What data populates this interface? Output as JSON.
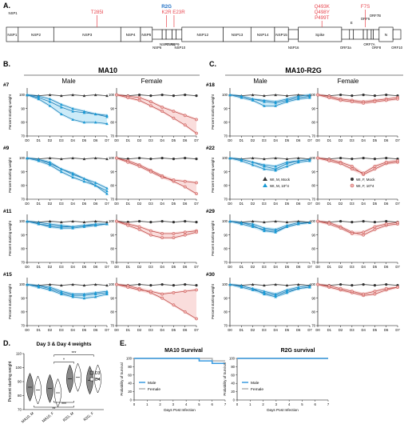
{
  "panel_labels": {
    "a": "A.",
    "b": "B.",
    "c": "C.",
    "d": "D.",
    "e": "E."
  },
  "genome": {
    "genes": [
      {
        "name": "NSP1",
        "start": 0,
        "end": 3
      },
      {
        "name": "NSP2",
        "start": 3,
        "end": 12
      },
      {
        "name": "NSP3",
        "start": 12,
        "end": 29
      },
      {
        "name": "NSP4",
        "start": 29,
        "end": 34
      },
      {
        "name": "NSP5",
        "start": 34,
        "end": 37
      },
      {
        "name": "NSP6",
        "start": 37,
        "end": 39.5
      },
      {
        "name": "NSP7",
        "start": 39.5,
        "end": 40.5
      },
      {
        "name": "NSP8",
        "start": 40.5,
        "end": 42
      },
      {
        "name": "NSP9",
        "start": 42,
        "end": 43
      },
      {
        "name": "NSP10",
        "start": 43,
        "end": 44.5
      },
      {
        "name": "NSP12",
        "start": 44.5,
        "end": 55
      },
      {
        "name": "NSP13",
        "start": 55,
        "end": 62
      },
      {
        "name": "NSP14",
        "start": 62,
        "end": 68
      },
      {
        "name": "NSP15",
        "start": 68,
        "end": 71.5
      },
      {
        "name": "NSP16",
        "start": 71.5,
        "end": 74
      },
      {
        "name": "Spike",
        "start": 74,
        "end": 85
      },
      {
        "name": "ORF3a",
        "start": 85,
        "end": 87
      },
      {
        "name": "E",
        "start": 87,
        "end": 88
      },
      {
        "name": "M",
        "start": 88,
        "end": 90.5
      },
      {
        "name": "ORF6",
        "start": 90.5,
        "end": 91.5
      },
      {
        "name": "ORF7A",
        "start": 91.5,
        "end": 92.5
      },
      {
        "name": "ORF7B",
        "start": 92.5,
        "end": 93
      },
      {
        "name": "ORF8",
        "start": 93,
        "end": 94.5
      },
      {
        "name": "N",
        "start": 94.5,
        "end": 98
      },
      {
        "name": "ORF10",
        "start": 98,
        "end": 100
      }
    ],
    "mutations": [
      {
        "text": "T285I",
        "at": 23,
        "color": "#e8464f"
      },
      {
        "text": "R2G",
        "at": 40.6,
        "color": "#1f6fc4"
      },
      {
        "text": "K2R",
        "at": 40.6,
        "color": "#e8464f"
      },
      {
        "text": "E23R",
        "at": 42.5,
        "color": "#e8464f"
      },
      {
        "text": "Q493K",
        "at": 80,
        "color": "#e8464f"
      },
      {
        "text": "Q498Y",
        "at": 80,
        "color": "#e8464f"
      },
      {
        "text": "P499T",
        "at": 80,
        "color": "#e8464f"
      },
      {
        "text": "F7S",
        "at": 91,
        "color": "#e8464f"
      }
    ]
  },
  "section_titles": {
    "ma10": "MA10",
    "ma10_r2g": "MA10-R2G"
  },
  "sex_labels": {
    "male": "Male",
    "female": "Female"
  },
  "weight_axis": {
    "ylabel": "Percent starting weight",
    "yticks": [
      70,
      80,
      90,
      100
    ],
    "days": [
      "D0",
      "D1",
      "D2",
      "D3",
      "D4",
      "D5",
      "D6",
      "D7"
    ]
  },
  "legend_m": {
    "mock": "WI, M, Mock",
    "infected": "WI, M, 10^4"
  },
  "legend_f": {
    "mock": "WI, F, Mock",
    "infected": "WI, F, 10^4"
  },
  "rows_ma10": [
    {
      "label": "#7",
      "male": [
        [
          100,
          99,
          97,
          93,
          90,
          88,
          86,
          84
        ],
        [
          100,
          98,
          95,
          91,
          88,
          87,
          86,
          85
        ],
        [
          100,
          97,
          92,
          86,
          82,
          80,
          80,
          79
        ]
      ],
      "female": [
        [
          100,
          99,
          98,
          95,
          91,
          88,
          85,
          82
        ],
        [
          100,
          98,
          96,
          92,
          88,
          83,
          78,
          72
        ]
      ]
    },
    {
      "label": "#9",
      "male": [
        [
          100,
          99,
          97,
          92,
          88,
          85,
          82,
          78
        ],
        [
          100,
          98,
          95,
          90,
          86,
          83,
          80,
          76
        ],
        [
          100,
          99,
          96,
          92,
          89,
          85,
          80,
          74
        ]
      ],
      "female": [
        [
          100,
          98,
          95,
          91,
          87,
          83,
          79,
          74
        ],
        [
          100,
          97,
          94,
          90,
          86,
          84,
          83,
          82
        ]
      ]
    },
    {
      "label": "#11",
      "male": [
        [
          100,
          98,
          97,
          96,
          96,
          97,
          98,
          98
        ],
        [
          100,
          99,
          98,
          97,
          96,
          97,
          97,
          98
        ],
        [
          100,
          98,
          96,
          95,
          95,
          96,
          97,
          98
        ]
      ],
      "female": [
        [
          100,
          98,
          96,
          93,
          91,
          91,
          92,
          93
        ],
        [
          100,
          97,
          94,
          90,
          88,
          88,
          90,
          92
        ]
      ]
    },
    {
      "label": "#15",
      "male": [
        [
          100,
          99,
          97,
          94,
          92,
          92,
          93,
          94
        ],
        [
          100,
          98,
          96,
          93,
          91,
          90,
          91,
          93
        ],
        [
          100,
          99,
          98,
          95,
          93,
          93,
          94,
          95
        ]
      ],
      "female": [
        [
          100,
          99,
          97,
          94,
          90,
          85,
          80,
          75
        ],
        [
          100,
          98,
          96,
          95,
          93,
          94,
          95,
          96
        ]
      ]
    }
  ],
  "rows_r2g": [
    {
      "label": "#18",
      "male": [
        [
          100,
          99,
          97,
          95,
          94,
          96,
          98,
          99
        ],
        [
          100,
          98,
          96,
          92,
          92,
          95,
          97,
          98
        ],
        [
          100,
          99,
          97,
          96,
          95,
          97,
          99,
          100
        ]
      ],
      "female": [
        [
          100,
          99,
          97,
          96,
          95,
          96,
          97,
          98
        ],
        [
          100,
          98,
          96,
          95,
          94,
          95,
          96,
          97
        ]
      ]
    },
    {
      "label": "#22",
      "male": [
        [
          100,
          99,
          97,
          94,
          92,
          96,
          98,
          99
        ],
        [
          100,
          98,
          95,
          92,
          91,
          94,
          97,
          98
        ],
        [
          100,
          99,
          97,
          95,
          94,
          97,
          98,
          99
        ]
      ],
      "female": [
        [
          100,
          99,
          97,
          94,
          88,
          92,
          96,
          97
        ],
        [
          100,
          98,
          96,
          92,
          89,
          94,
          97,
          98
        ]
      ]
    },
    {
      "label": "#29",
      "male": [
        [
          100,
          99,
          97,
          93,
          92,
          96,
          98,
          99
        ],
        [
          100,
          98,
          96,
          94,
          93,
          96,
          98,
          99
        ],
        [
          100,
          99,
          98,
          95,
          94,
          97,
          99,
          99
        ]
      ],
      "female": [
        [
          100,
          99,
          96,
          92,
          90,
          94,
          97,
          98
        ],
        [
          100,
          98,
          95,
          91,
          92,
          96,
          98,
          99
        ]
      ]
    },
    {
      "label": "#30",
      "male": [
        [
          100,
          99,
          97,
          93,
          91,
          94,
          97,
          98
        ],
        [
          100,
          98,
          96,
          94,
          92,
          95,
          97,
          98
        ],
        [
          100,
          99,
          97,
          95,
          93,
          96,
          98,
          99
        ]
      ],
      "female": [
        [
          100,
          98,
          96,
          94,
          92,
          93,
          96,
          98
        ],
        [
          100,
          99,
          97,
          95,
          93,
          95,
          97,
          98
        ]
      ]
    }
  ],
  "chart_data": [
    {
      "type": "scatter",
      "title": "Day 3 & Day 4 weights",
      "ylabel": "Percent starting weight",
      "categories": [
        "MA10, M",
        "MA10, F",
        "R2G, M",
        "R2G, F"
      ],
      "ylim": [
        70,
        110
      ],
      "yticks": [
        70,
        80,
        90,
        100,
        110
      ],
      "legend": [
        "D3",
        "D4"
      ],
      "series": [
        {
          "name": "D3",
          "values": [
            86,
            85,
            92,
            91
          ]
        },
        {
          "name": "D4",
          "values": [
            84,
            82,
            93,
            92
          ]
        }
      ],
      "significance": [
        "**",
        "***",
        "*",
        "***"
      ]
    },
    {
      "type": "line",
      "title": "MA10 Survival",
      "xlabel": "Days Post Infection",
      "ylabel": "Probability of Survival",
      "x": [
        0,
        1,
        2,
        3,
        4,
        5,
        6,
        7
      ],
      "ylim": [
        0,
        100
      ],
      "yticks": [
        0,
        20,
        40,
        60,
        80,
        100
      ],
      "series": [
        {
          "name": "Male",
          "color": "#3a9be0",
          "values": [
            100,
            100,
            100,
            100,
            100,
            94,
            88,
            88
          ]
        },
        {
          "name": "Female",
          "color": "#b0b0b0",
          "values": [
            100,
            100,
            100,
            100,
            100,
            100,
            94,
            94
          ]
        }
      ]
    },
    {
      "type": "line",
      "title": "R2G survival",
      "xlabel": "Days Post Infection",
      "ylabel": "Probability of Survival",
      "x": [
        0,
        1,
        2,
        3,
        4,
        5,
        6,
        7
      ],
      "ylim": [
        0,
        100
      ],
      "yticks": [
        0,
        20,
        40,
        60,
        80,
        100
      ],
      "series": [
        {
          "name": "Male",
          "color": "#3a9be0",
          "values": [
            100,
            100,
            100,
            100,
            100,
            100,
            100,
            100
          ]
        },
        {
          "name": "Female",
          "color": "#b0b0b0",
          "values": [
            100,
            100,
            100,
            100,
            100,
            100,
            100,
            100
          ]
        }
      ]
    }
  ],
  "colors": {
    "male_line": "#1f7fb8",
    "male_fill": "#8fd3ef",
    "female_line": "#c0504d",
    "female_fill": "#f4b4b2",
    "mock": "#333333",
    "male_marker": "#1a9bd6"
  }
}
